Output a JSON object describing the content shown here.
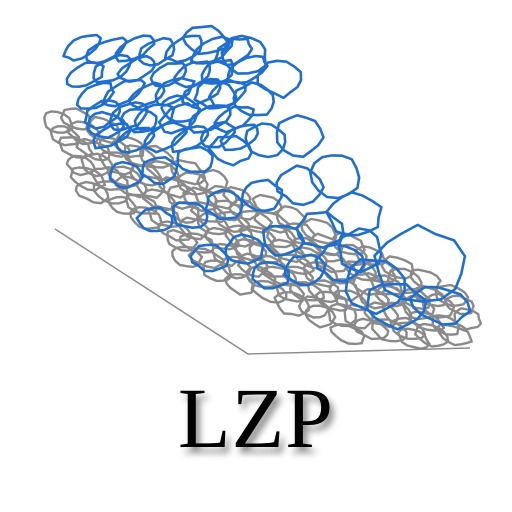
{
  "logo": {
    "text": "LZP"
  },
  "colors": {
    "blue_mesh": "#1f6fd1",
    "gray_mesh": "#8a8a8a",
    "base_line": "#8a8a8a",
    "text": "#000000",
    "background": "#ffffff"
  }
}
